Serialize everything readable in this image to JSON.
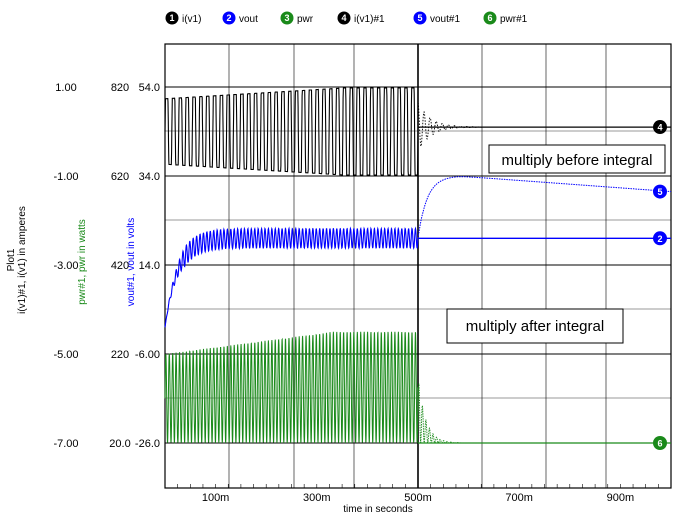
{
  "chart_data": {
    "type": "line",
    "xlabel": "time in seconds",
    "x_ticks": [
      {
        "value": 100,
        "label": "100m"
      },
      {
        "value": 300,
        "label": "300m"
      },
      {
        "value": 500,
        "label": "500m"
      },
      {
        "value": 700,
        "label": "700m"
      },
      {
        "value": 900,
        "label": "900m"
      }
    ],
    "xlim": [
      0,
      1000
    ],
    "grid": true,
    "legend_position": "top",
    "axes": [
      {
        "id": "amps",
        "label_lines": [
          "Plot1",
          "i(v1)#1, i(v1) in amperes"
        ],
        "color": "#000000",
        "ticks": [
          "1.00",
          "-1.00",
          "-3.00",
          "-5.00",
          "-7.00"
        ],
        "range": [
          -7,
          1
        ]
      },
      {
        "id": "watts",
        "label_lines": [
          "pwr#1, pwr in watts"
        ],
        "color": "#1a8a1a",
        "ticks": [
          "820",
          "620",
          "420",
          "220",
          "20.0"
        ],
        "range": [
          20,
          820
        ]
      },
      {
        "id": "volts",
        "label_lines": [
          "vout#1, vout in volts"
        ],
        "color": "#0000ff",
        "ticks": [
          "54.0",
          "34.0",
          "14.0",
          "-6.00",
          "-26.0"
        ],
        "range": [
          -26,
          54
        ]
      }
    ],
    "series": [
      {
        "id": "1",
        "name": "i(v1)",
        "color": "#000000",
        "axis": "amps",
        "description": "oscillates between about -1.0 and 1.0 A from 0 to 500m, then near 0.1 A",
        "osc_range": [
          -1.0,
          1.0
        ],
        "final": 0.1
      },
      {
        "id": "2",
        "name": "vout",
        "color": "#0000ff",
        "axis": "volts",
        "description": "rises from about 0 V to ~20 V with small ripple, holds ~20 V after 500m",
        "steady": 20.0,
        "final": 20.0
      },
      {
        "id": "3",
        "name": "pwr",
        "color": "#1a8a1a",
        "axis": "watts",
        "description": "oscillates between about 20 and 270 W until 500m, then near 20 W",
        "osc_range": [
          20,
          270
        ],
        "final": 20
      },
      {
        "id": "4",
        "name": "i(v1)#1",
        "color": "#000000",
        "axis": "amps",
        "description": "dotted copy of i(v1) with decaying ringing after 500m",
        "final": 0.1
      },
      {
        "id": "5",
        "name": "vout#1",
        "color": "#0000ff",
        "axis": "volts",
        "description": "follows vout until 500m, rises to ~34 V at 580m, decays to ~30 V at 1000m",
        "peak": 34.0,
        "final": 30.5
      },
      {
        "id": "6",
        "name": "pwr#1",
        "color": "#1a8a1a",
        "axis": "watts",
        "description": "dotted copy of pwr, decays to ~20 W after 500m",
        "final": 20
      }
    ],
    "annotations": [
      "multiply before integral",
      "multiply after integral"
    ]
  }
}
